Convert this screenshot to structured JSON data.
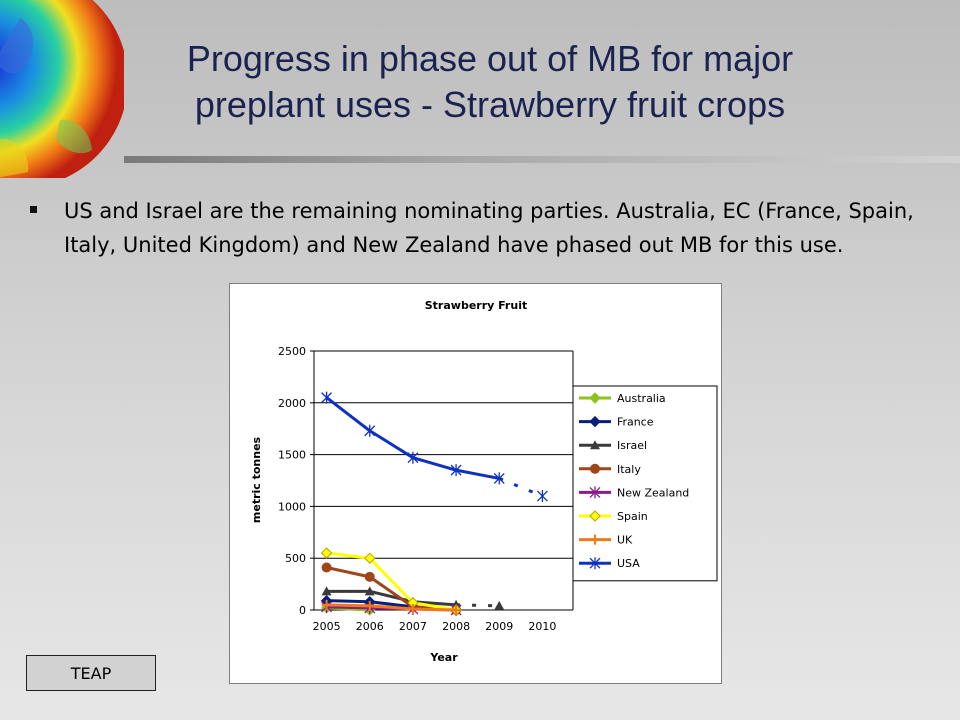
{
  "slide": {
    "title_line1": "Progress in phase out of MB for major",
    "title_line2": "preplant uses - Strawberry fruit crops",
    "bullet": "US and Israel are the remaining nominating parties.  Australia, EC (France, Spain, Italy, United Kingdom) and New Zealand have phased out MB for this use.",
    "footer_label": "TEAP"
  },
  "chart_data": {
    "type": "line",
    "title": "Strawberry Fruit",
    "xlabel": "Year",
    "ylabel": "metric tonnes",
    "categories": [
      "2005",
      "2006",
      "2007",
      "2008",
      "2009",
      "2010"
    ],
    "ylim": [
      0,
      2500
    ],
    "yticks": [
      0,
      500,
      1000,
      1500,
      2000,
      2500
    ],
    "grid": true,
    "legend_position": "right",
    "series": [
      {
        "name": "Australia",
        "color": "#8dc21f",
        "marker": "diamond",
        "values": [
          20,
          0,
          null,
          null,
          null,
          null
        ]
      },
      {
        "name": "France",
        "color": "#0a1f7a",
        "marker": "diamond",
        "values": [
          90,
          80,
          30,
          0,
          null,
          null
        ]
      },
      {
        "name": "Israel",
        "color": "#3a3a3a",
        "marker": "triangle",
        "values": [
          180,
          180,
          80,
          50,
          40,
          null
        ],
        "dashed_from": 3
      },
      {
        "name": "Italy",
        "color": "#a0441a",
        "marker": "circle",
        "values": [
          410,
          320,
          30,
          0,
          null,
          null
        ]
      },
      {
        "name": "New Zealand",
        "color": "#8c1a8c",
        "marker": "star",
        "values": [
          30,
          20,
          10,
          0,
          null,
          null
        ]
      },
      {
        "name": "Spain",
        "color": "#ffff00",
        "marker": "diamond-open",
        "values": [
          550,
          500,
          70,
          0,
          null,
          null
        ]
      },
      {
        "name": "UK",
        "color": "#f07a1a",
        "marker": "plus",
        "values": [
          50,
          40,
          10,
          0,
          null,
          null
        ]
      },
      {
        "name": "USA",
        "color": "#1030c0",
        "marker": "star",
        "values": [
          2050,
          1730,
          1470,
          1350,
          1270,
          1100
        ],
        "dashed_from": 4
      }
    ]
  }
}
